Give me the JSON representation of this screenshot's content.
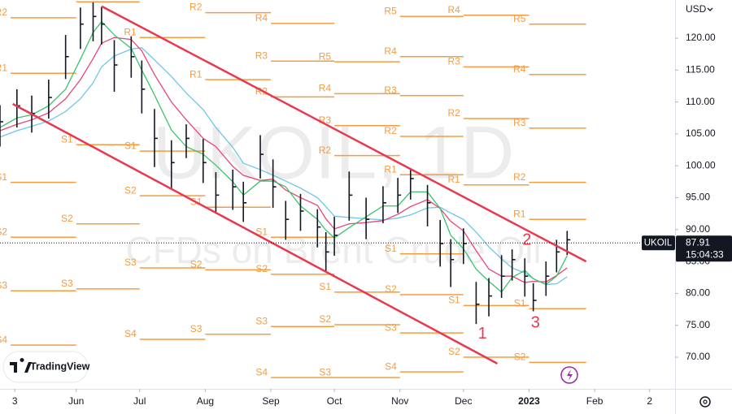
{
  "chart_data": {
    "type": "ohlc",
    "currency": "USD",
    "watermark_title": "UKOIL, 1D",
    "watermark_subtitle": "CFDs on Brent Crude Oil",
    "symbol": "UKOIL",
    "last_price": 87.91,
    "countdown": "15:04:33",
    "logo": "TradingView",
    "xlim": [
      "2022-04-26",
      "2023-03-11"
    ],
    "ylim": [
      65.17,
      125.98
    ],
    "yticks": [
      {
        "value": 70,
        "label": "70.00"
      },
      {
        "value": 75,
        "label": "75.00"
      },
      {
        "value": 80,
        "label": "80.00"
      },
      {
        "value": 85,
        "label": "85.00"
      },
      {
        "value": 90,
        "label": "90.00"
      },
      {
        "value": 95,
        "label": "95.00"
      },
      {
        "value": 100,
        "label": "100.00"
      },
      {
        "value": 105,
        "label": "105.00"
      },
      {
        "value": 110,
        "label": "110.00"
      },
      {
        "value": 115,
        "label": "115.00"
      },
      {
        "value": 120,
        "label": "120.00"
      }
    ],
    "xticks": [
      {
        "value": "2022-05-03",
        "label": "3"
      },
      {
        "value": "2022-06-01",
        "label": "Jun"
      },
      {
        "value": "2022-07-01",
        "label": "Jul"
      },
      {
        "value": "2022-08-01",
        "label": "Aug"
      },
      {
        "value": "2022-09-01",
        "label": "Sep"
      },
      {
        "value": "2022-10-01",
        "label": "Oct"
      },
      {
        "value": "2022-11-01",
        "label": "Nov"
      },
      {
        "value": "2022-12-01",
        "label": "Dec"
      },
      {
        "value": "2023-01-01",
        "label": "2023"
      },
      {
        "value": "2023-02-01",
        "label": "Feb"
      },
      {
        "value": "2023-02-27",
        "label": "2"
      }
    ],
    "x": [
      "2022-04-26",
      "2022-05-04",
      "2022-05-11",
      "2022-05-19",
      "2022-05-27",
      "2022-06-03",
      "2022-06-09",
      "2022-06-13",
      "2022-06-19",
      "2022-06-27",
      "2022-07-02",
      "2022-07-08",
      "2022-07-16",
      "2022-07-23",
      "2022-07-31",
      "2022-08-06",
      "2022-08-14",
      "2022-08-19",
      "2022-08-27",
      "2022-09-02",
      "2022-09-08",
      "2022-09-15",
      "2022-09-23",
      "2022-09-27",
      "2022-10-01",
      "2022-10-08",
      "2022-10-16",
      "2022-10-24",
      "2022-10-31",
      "2022-11-06",
      "2022-11-14",
      "2022-11-20",
      "2022-11-25",
      "2022-12-01",
      "2022-12-07",
      "2022-12-13",
      "2022-12-19",
      "2022-12-24",
      "2022-12-30",
      "2023-01-03",
      "2023-01-09",
      "2023-01-14",
      "2023-01-19"
    ],
    "high": [
      109.5,
      112,
      111,
      113.5,
      120.5,
      124.8,
      125.6,
      124.9,
      119.7,
      120.3,
      116.5,
      108.9,
      104,
      106.5,
      104.2,
      99,
      99.4,
      97.5,
      104.8,
      101,
      94.5,
      95.6,
      93.2,
      89.6,
      92,
      99.1,
      95,
      96.8,
      98.1,
      99.6,
      97,
      91.5,
      88.5,
      90.2,
      81.8,
      82.4,
      86,
      86.9,
      85.5,
      81.6,
      85,
      88.4,
      89.8
    ],
    "low": [
      103,
      106,
      105.2,
      107.4,
      113.6,
      118.3,
      119.5,
      119,
      111.6,
      113.8,
      108.2,
      99.8,
      96.4,
      101.2,
      97.3,
      92.5,
      93.1,
      91.2,
      98,
      93.4,
      88.4,
      89.8,
      87.2,
      83.4,
      85.9,
      91.4,
      88.5,
      91,
      92.6,
      94.7,
      90.5,
      84.2,
      81,
      84.6,
      75.2,
      76.4,
      79.3,
      82,
      79.5,
      77.2,
      79.6,
      83.3,
      86
    ],
    "close": [
      106.9,
      109.4,
      108.2,
      110.7,
      117.1,
      122.2,
      123.4,
      122.2,
      115.8,
      117.1,
      112,
      104.3,
      100.5,
      104.3,
      100.5,
      95.4,
      96.7,
      94.2,
      101.8,
      96.7,
      91.6,
      92.9,
      90.4,
      86.5,
      89.1,
      95.4,
      91.6,
      94.2,
      95.4,
      98,
      94.2,
      87.8,
      85.3,
      87.8,
      78.3,
      79.6,
      82.7,
      85.3,
      82.7,
      78.9,
      82.7,
      86.5,
      88.4
    ],
    "lines": [
      {
        "color": "#6ec6e8",
        "values": [
          104.5,
          105.5,
          106.2,
          107,
          108.5,
          110.5,
          113,
          115.5,
          117.2,
          118.3,
          118.5,
          116.6,
          114,
          111.4,
          108.8,
          106,
          102.9,
          100.4,
          99.4,
          98.5,
          97.6,
          96.5,
          95,
          93.6,
          92.1,
          91.9,
          91.7,
          91.5,
          91.8,
          92.3,
          93.4,
          93.5,
          92.6,
          91.6,
          89.6,
          87.3,
          85.4,
          84,
          83.2,
          82.3,
          81.4,
          81.5,
          82.6
        ]
      },
      {
        "color": "#e8457a",
        "values": [
          105.5,
          106.5,
          107.2,
          108.3,
          110.5,
          113.5,
          116.8,
          119.2,
          120.1,
          119.8,
          118,
          114.3,
          110,
          107.2,
          104.3,
          103,
          99.9,
          98.5,
          97.7,
          97.9,
          96.2,
          95,
          93.8,
          91.7,
          90.1,
          90.9,
          91.1,
          91.4,
          92.4,
          93.6,
          94.7,
          93.3,
          91.3,
          89.8,
          86.7,
          83.8,
          82.7,
          82.7,
          81.7,
          81.9,
          81.8,
          82.8,
          84
        ]
      },
      {
        "color": "#3cc36a",
        "values": [
          106,
          107.5,
          108,
          109.4,
          112,
          116.7,
          120.9,
          122.6,
          120.5,
          118.4,
          115,
          111.1,
          105.6,
          103,
          101.8,
          100.1,
          97.5,
          95.4,
          97.6,
          97.6,
          96.7,
          93.7,
          91.6,
          89.9,
          88.7,
          90.3,
          92,
          93.7,
          93.7,
          95.9,
          95.9,
          93.3,
          89.1,
          87,
          83.8,
          81.9,
          80.2,
          82.5,
          83.6,
          82.3,
          81.4,
          82.7,
          85.9
        ]
      }
    ],
    "pivot_color": "#f59b42",
    "pivots": [
      {
        "start": "2022-05-01",
        "end": "2022-06-01",
        "levels": [
          {
            "label": "R2",
            "value": 123.2
          },
          {
            "label": "R1",
            "value": 114.5
          },
          {
            "label": "S1",
            "value": 97.4
          },
          {
            "label": "S2",
            "value": 88.8
          },
          {
            "label": "S3",
            "value": 80.4
          },
          {
            "label": "S4",
            "value": 71.9
          }
        ]
      },
      {
        "start": "2022-06-01",
        "end": "2022-07-01",
        "levels": [
          {
            "label": "R1",
            "value": 125.7
          },
          {
            "label": "S1",
            "value": 103.3
          },
          {
            "label": "S2",
            "value": 90.9
          },
          {
            "label": "S3",
            "value": 80.7
          }
        ]
      },
      {
        "start": "2022-07-01",
        "end": "2022-08-01",
        "levels": [
          {
            "label": "R1",
            "value": 120.1
          },
          {
            "label": "S1",
            "value": 102.3
          },
          {
            "label": "S2",
            "value": 95.3
          },
          {
            "label": "S3",
            "value": 84
          },
          {
            "label": "S4",
            "value": 72.8
          }
        ]
      },
      {
        "start": "2022-08-01",
        "end": "2022-09-01",
        "levels": [
          {
            "label": "R2",
            "value": 124
          },
          {
            "label": "R1",
            "value": 113.5
          },
          {
            "label": "S1",
            "value": 93.5
          },
          {
            "label": "S2",
            "value": 83.7
          },
          {
            "label": "S3",
            "value": 73.6
          }
        ]
      },
      {
        "start": "2022-09-01",
        "end": "2022-10-01",
        "levels": [
          {
            "label": "R4",
            "value": 122.3
          },
          {
            "label": "R3",
            "value": 116.4
          },
          {
            "label": "R2",
            "value": 110.8
          },
          {
            "label": "S1",
            "value": 88.8
          },
          {
            "label": "S2",
            "value": 83
          },
          {
            "label": "S3",
            "value": 74.8
          },
          {
            "label": "S4",
            "value": 66.8
          }
        ]
      },
      {
        "start": "2022-10-01",
        "end": "2022-11-01",
        "levels": [
          {
            "label": "R5",
            "value": 116.3
          },
          {
            "label": "R4",
            "value": 111.3
          },
          {
            "label": "R3",
            "value": 106.3
          },
          {
            "label": "R2",
            "value": 101.6
          },
          {
            "label": "S1",
            "value": 80.2
          },
          {
            "label": "S2",
            "value": 75.1
          },
          {
            "label": "S3",
            "value": 66.8
          }
        ]
      },
      {
        "start": "2022-11-01",
        "end": "2022-12-01",
        "levels": [
          {
            "label": "R5",
            "value": 123.4
          },
          {
            "label": "R4",
            "value": 117.1
          },
          {
            "label": "R3",
            "value": 111
          },
          {
            "label": "R2",
            "value": 104.6
          },
          {
            "label": "R1",
            "value": 98.6
          },
          {
            "label": "S1",
            "value": 86.2
          },
          {
            "label": "S2",
            "value": 79.8
          },
          {
            "label": "S3",
            "value": 73.8
          },
          {
            "label": "S4",
            "value": 67.7
          }
        ]
      },
      {
        "start": "2022-12-01",
        "end": "2023-01-01",
        "levels": [
          {
            "label": "R4",
            "value": 123.6
          },
          {
            "label": "R3",
            "value": 115.5
          },
          {
            "label": "R2",
            "value": 107.4
          },
          {
            "label": "R1",
            "value": 97
          },
          {
            "label": "S1",
            "value": 78.1
          },
          {
            "label": "S2",
            "value": 70
          }
        ]
      },
      {
        "start": "2023-01-01",
        "end": "2023-01-28",
        "levels": [
          {
            "label": "R5",
            "value": 122.2
          },
          {
            "label": "R4",
            "value": 114.3
          },
          {
            "label": "R3",
            "value": 105.9
          },
          {
            "label": "R2",
            "value": 97.4
          },
          {
            "label": "R1",
            "value": 91.6
          },
          {
            "label": "S1",
            "value": 77.6
          },
          {
            "label": "S2",
            "value": 69.2
          }
        ]
      }
    ],
    "trendline_color": "#e8394f",
    "trendlines": [
      {
        "x": [
          "2022-06-13",
          "2023-01-28"
        ],
        "y": [
          125,
          85
        ]
      },
      {
        "x": [
          "2022-05-02",
          "2022-12-17"
        ],
        "y": [
          109.7,
          69
        ]
      }
    ],
    "annotations": [
      {
        "text": "1",
        "x": "2022-12-10",
        "y": 73.6
      },
      {
        "text": "2",
        "x": "2022-12-31",
        "y": 88.3
      },
      {
        "text": "3",
        "x": "2023-01-04",
        "y": 75.3
      }
    ]
  }
}
